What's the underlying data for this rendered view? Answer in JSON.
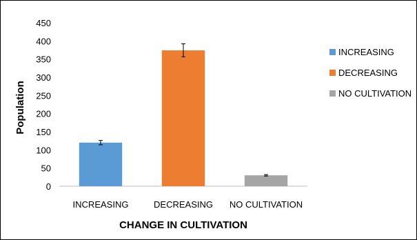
{
  "chart_data": {
    "type": "bar",
    "title": "",
    "xlabel": "CHANGE IN CULTIVATION",
    "ylabel": "Population",
    "categories": [
      "INCREASING",
      "DECREASING",
      "NO CULTIVATION"
    ],
    "values": [
      120,
      374,
      30
    ],
    "error": [
      6,
      18,
      2
    ],
    "colors": [
      "#5b9bd5",
      "#ed7d31",
      "#a5a5a5"
    ],
    "ylim": [
      0,
      450
    ],
    "yticks": [
      0,
      50,
      100,
      150,
      200,
      250,
      300,
      350,
      400,
      450
    ],
    "grid": false,
    "legend": {
      "position": "right",
      "entries": [
        "INCREASING",
        "DECREASING",
        "NO CULTIVATION"
      ]
    }
  }
}
